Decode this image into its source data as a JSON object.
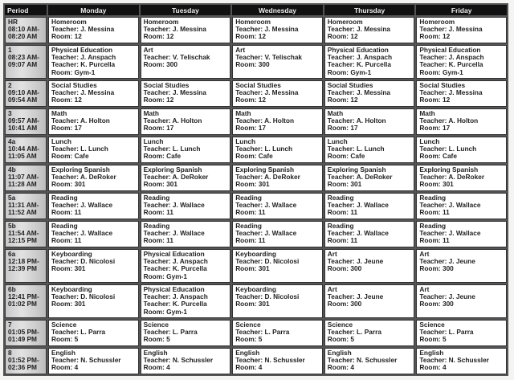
{
  "headers": [
    "Period",
    "Monday",
    "Tuesday",
    "Wednesday",
    "Thursday",
    "Friday"
  ],
  "rows": [
    {
      "period": "HR",
      "start": "08:10 AM-",
      "end": "08:20 AM",
      "cells": [
        {
          "lines": [
            "Homeroom",
            "Teacher: J. Messina",
            "Room: 12"
          ]
        },
        {
          "lines": [
            "Homeroom",
            "Teacher: J. Messina",
            "Room: 12"
          ]
        },
        {
          "lines": [
            "Homeroom",
            "Teacher: J. Messina",
            "Room: 12"
          ]
        },
        {
          "lines": [
            "Homeroom",
            "Teacher: J. Messina",
            "Room: 12"
          ]
        },
        {
          "lines": [
            "Homeroom",
            "Teacher: J. Messina",
            "Room: 12"
          ]
        }
      ]
    },
    {
      "period": "1",
      "start": "08:23 AM-",
      "end": "09:07 AM",
      "cells": [
        {
          "lines": [
            "Physical Education",
            "Teacher: J. Anspach",
            "Teacher:  K. Purcella",
            "Room: Gym-1"
          ]
        },
        {
          "lines": [
            "Art",
            "Teacher: V. Telischak",
            "Room: 300"
          ]
        },
        {
          "lines": [
            "Art",
            "Teacher: V. Telischak",
            "Room: 300"
          ]
        },
        {
          "lines": [
            "Physical Education",
            "Teacher: J. Anspach",
            "Teacher:  K. Purcella",
            "Room: Gym-1"
          ]
        },
        {
          "lines": [
            "Physical Education",
            "Teacher: J. Anspach",
            "Teacher:  K. Purcella",
            "Room: Gym-1"
          ]
        }
      ]
    },
    {
      "period": "2",
      "start": "09:10 AM-",
      "end": "09:54 AM",
      "cells": [
        {
          "lines": [
            "Social Studies",
            "Teacher: J. Messina",
            "Room: 12"
          ]
        },
        {
          "lines": [
            "Social Studies",
            "Teacher: J. Messina",
            "Room: 12"
          ]
        },
        {
          "lines": [
            "Social Studies",
            "Teacher: J. Messina",
            "Room: 12"
          ]
        },
        {
          "lines": [
            "Social Studies",
            "Teacher: J. Messina",
            "Room: 12"
          ]
        },
        {
          "lines": [
            "Social Studies",
            "Teacher: J. Messina",
            "Room: 12"
          ]
        }
      ]
    },
    {
      "period": "3",
      "start": "09:57 AM-",
      "end": "10:41 AM",
      "cells": [
        {
          "lines": [
            "Math",
            "Teacher: A. Holton",
            "Room: 17"
          ]
        },
        {
          "lines": [
            "Math",
            "Teacher: A. Holton",
            "Room: 17"
          ]
        },
        {
          "lines": [
            "Math",
            "Teacher: A. Holton",
            "Room: 17"
          ]
        },
        {
          "lines": [
            "Math",
            "Teacher: A. Holton",
            "Room: 17"
          ]
        },
        {
          "lines": [
            "Math",
            "Teacher: A. Holton",
            "Room: 17"
          ]
        }
      ]
    },
    {
      "period": "4a",
      "start": "10:44 AM-",
      "end": "11:05 AM",
      "cells": [
        {
          "lines": [
            "Lunch",
            "Teacher: L. Lunch",
            "Room: Cafe"
          ]
        },
        {
          "lines": [
            "Lunch",
            "Teacher: L. Lunch",
            "Room: Cafe"
          ]
        },
        {
          "lines": [
            "Lunch",
            "Teacher: L. Lunch",
            "Room: Cafe"
          ]
        },
        {
          "lines": [
            "Lunch",
            "Teacher: L. Lunch",
            "Room: Cafe"
          ]
        },
        {
          "lines": [
            "Lunch",
            "Teacher: L. Lunch",
            "Room: Cafe"
          ]
        }
      ]
    },
    {
      "period": "4b",
      "start": "11:07 AM-",
      "end": "11:28 AM",
      "cells": [
        {
          "lines": [
            "Exploring Spanish",
            "Teacher: A. DeRoker",
            "Room: 301"
          ]
        },
        {
          "lines": [
            "Exploring Spanish",
            "Teacher: A. DeRoker",
            "Room: 301"
          ]
        },
        {
          "lines": [
            "Exploring Spanish",
            "Teacher: A. DeRoker",
            "Room: 301"
          ]
        },
        {
          "lines": [
            "Exploring Spanish",
            "Teacher: A. DeRoker",
            "Room: 301"
          ]
        },
        {
          "lines": [
            "Exploring Spanish",
            "Teacher: A. DeRoker",
            "Room: 301"
          ]
        }
      ]
    },
    {
      "period": "5a",
      "start": "11:31 AM-",
      "end": "11:52 AM",
      "cells": [
        {
          "lines": [
            "Reading",
            "Teacher: J. Wallace",
            "Room: 11"
          ]
        },
        {
          "lines": [
            "Reading",
            "Teacher: J. Wallace",
            "Room: 11"
          ]
        },
        {
          "lines": [
            "Reading",
            "Teacher: J. Wallace",
            "Room: 11"
          ]
        },
        {
          "lines": [
            "Reading",
            "Teacher: J. Wallace",
            "Room: 11"
          ]
        },
        {
          "lines": [
            "Reading",
            "Teacher: J. Wallace",
            "Room: 11"
          ]
        }
      ]
    },
    {
      "period": "5b",
      "start": "11:54 AM-",
      "end": "12:15 PM",
      "cells": [
        {
          "lines": [
            "Reading",
            "Teacher: J. Wallace",
            "Room: 11"
          ]
        },
        {
          "lines": [
            "Reading",
            "Teacher: J. Wallace",
            "Room: 11"
          ]
        },
        {
          "lines": [
            "Reading",
            "Teacher: J. Wallace",
            "Room: 11"
          ]
        },
        {
          "lines": [
            "Reading",
            "Teacher: J. Wallace",
            "Room: 11"
          ]
        },
        {
          "lines": [
            "Reading",
            "Teacher: J. Wallace",
            "Room: 11"
          ]
        }
      ]
    },
    {
      "period": "6a",
      "start": "12:18 PM-",
      "end": "12:39 PM",
      "cells": [
        {
          "lines": [
            "Keyboarding",
            "Teacher: D. Nicolosi",
            "Room: 301"
          ]
        },
        {
          "lines": [
            "Physical Education",
            "Teacher: J. Anspach",
            "Teacher:  K. Purcella",
            "Room: Gym-1"
          ]
        },
        {
          "lines": [
            "Keyboarding",
            "Teacher: D. Nicolosi",
            "Room: 301"
          ]
        },
        {
          "lines": [
            "Art",
            "Teacher: J. Jeune",
            "Room: 300"
          ]
        },
        {
          "lines": [
            "Art",
            "Teacher: J. Jeune",
            "Room: 300"
          ]
        }
      ]
    },
    {
      "period": "6b",
      "start": "12:41 PM-",
      "end": "01:02 PM",
      "cells": [
        {
          "lines": [
            "Keyboarding",
            "Teacher: D. Nicolosi",
            "Room: 301"
          ]
        },
        {
          "lines": [
            "Physical Education",
            "Teacher: J. Anspach",
            "Teacher:  K. Purcella",
            "Room: Gym-1"
          ]
        },
        {
          "lines": [
            "Keyboarding",
            "Teacher: D. Nicolosi",
            "Room: 301"
          ]
        },
        {
          "lines": [
            "Art",
            "Teacher: J. Jeune",
            "Room: 300"
          ]
        },
        {
          "lines": [
            "Art",
            "Teacher: J. Jeune",
            "Room: 300"
          ]
        }
      ]
    },
    {
      "period": "7",
      "start": "01:05 PM-",
      "end": "01:49 PM",
      "cells": [
        {
          "lines": [
            "Science",
            "Teacher: L. Parra",
            "Room: 5"
          ]
        },
        {
          "lines": [
            "Science",
            "Teacher: L. Parra",
            "Room: 5"
          ]
        },
        {
          "lines": [
            "Science",
            "Teacher: L. Parra",
            "Room: 5"
          ]
        },
        {
          "lines": [
            "Science",
            "Teacher: L. Parra",
            "Room: 5"
          ]
        },
        {
          "lines": [
            "Science",
            "Teacher: L. Parra",
            "Room: 5"
          ]
        }
      ]
    },
    {
      "period": "8",
      "start": "01:52 PM-",
      "end": "02:36 PM",
      "cells": [
        {
          "lines": [
            "English",
            "Teacher: N. Schussler",
            "Room: 4"
          ]
        },
        {
          "lines": [
            "English",
            "Teacher: N. Schussler",
            "Room: 4"
          ]
        },
        {
          "lines": [
            "English",
            "Teacher: N. Schussler",
            "Room: 4"
          ]
        },
        {
          "lines": [
            "English",
            "Teacher: N. Schussler",
            "Room: 4"
          ]
        },
        {
          "lines": [
            "English",
            "Teacher: N. Schussler",
            "Room: 4"
          ]
        }
      ]
    }
  ]
}
